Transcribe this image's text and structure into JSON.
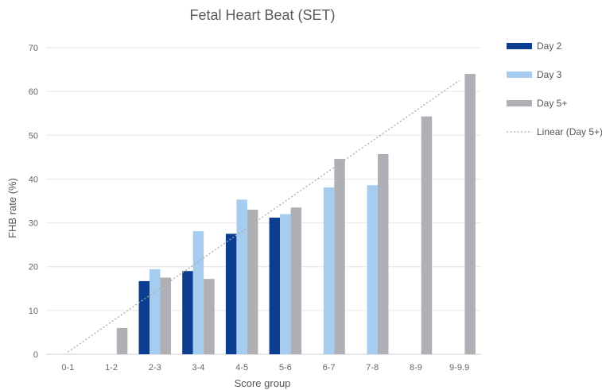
{
  "chart_data": {
    "type": "bar",
    "title": "Fetal Heart Beat (SET)",
    "xlabel": "Score group",
    "ylabel": "FHB rate (%)",
    "ylim": [
      0,
      70
    ],
    "yticks": [
      0,
      10,
      20,
      30,
      40,
      50,
      60,
      70
    ],
    "grid": true,
    "legend_position": "right",
    "categories": [
      "0-1",
      "1-2",
      "2-3",
      "3-4",
      "4-5",
      "5-6",
      "6-7",
      "7-8",
      "8-9",
      "9-9.9"
    ],
    "series": [
      {
        "name": "Day 2",
        "color": "#0b3d91",
        "values": [
          null,
          null,
          16.7,
          19.0,
          27.5,
          31.2,
          null,
          null,
          null,
          null
        ]
      },
      {
        "name": "Day 3",
        "color": "#a6cdf0",
        "values": [
          null,
          null,
          19.4,
          28.1,
          35.3,
          32.0,
          38.1,
          38.6,
          null,
          null
        ]
      },
      {
        "name": "Day 5+",
        "color": "#aeb0b5",
        "values": [
          null,
          6.0,
          17.5,
          17.2,
          33.0,
          33.5,
          44.6,
          45.7,
          54.3,
          64.0
        ]
      }
    ],
    "trendline": {
      "name": "Linear (Day 5+)",
      "type": "linear",
      "series": "Day 5+",
      "color": "#aaaaaa",
      "start": 0.5,
      "end": 62.5
    }
  }
}
